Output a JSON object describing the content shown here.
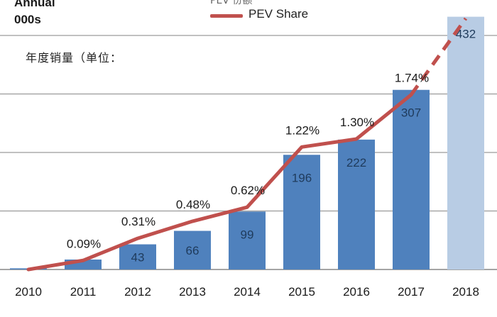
{
  "chart_data": {
    "type": "bar",
    "title": "",
    "ylabel_lines": [
      "Annual",
      "000s"
    ],
    "annotation_cn": "年度销量（单位：",
    "legend_cut_text": "PEV 份额",
    "categories": [
      "2010",
      "2011",
      "2012",
      "2013",
      "2014",
      "2015",
      "2016",
      "2017",
      "2018"
    ],
    "series": [
      {
        "name": "Annual PEV sales (000s)",
        "values": [
          2,
          17,
          43,
          66,
          99,
          196,
          222,
          307,
          432
        ],
        "labels": [
          "",
          "",
          "43",
          "66",
          "99",
          "196",
          "222",
          "307",
          "432"
        ]
      },
      {
        "name": "PEV Share",
        "kind": "line",
        "values_pct": [
          0.0,
          0.09,
          0.31,
          0.48,
          0.62,
          1.22,
          1.3,
          1.74,
          2.5
        ],
        "labels": [
          "",
          "0.09%",
          "0.31%",
          "0.48%",
          "0.62%",
          "1.22%",
          "1.30%",
          "1.74%",
          ""
        ],
        "projected_from_index": 7
      }
    ],
    "ylim": [
      0,
      450
    ],
    "y_gridlines": [
      0,
      100,
      200,
      300,
      400
    ],
    "share_ylim": [
      0,
      2.3
    ],
    "colors": {
      "bar": "#4f81bd",
      "bar_projected": "#b8cce4",
      "line": "#c0504d",
      "grid": "#9a9a9a",
      "bar_label": "#1f3b5c"
    },
    "legend": {
      "line_label": "PEV Share"
    }
  }
}
